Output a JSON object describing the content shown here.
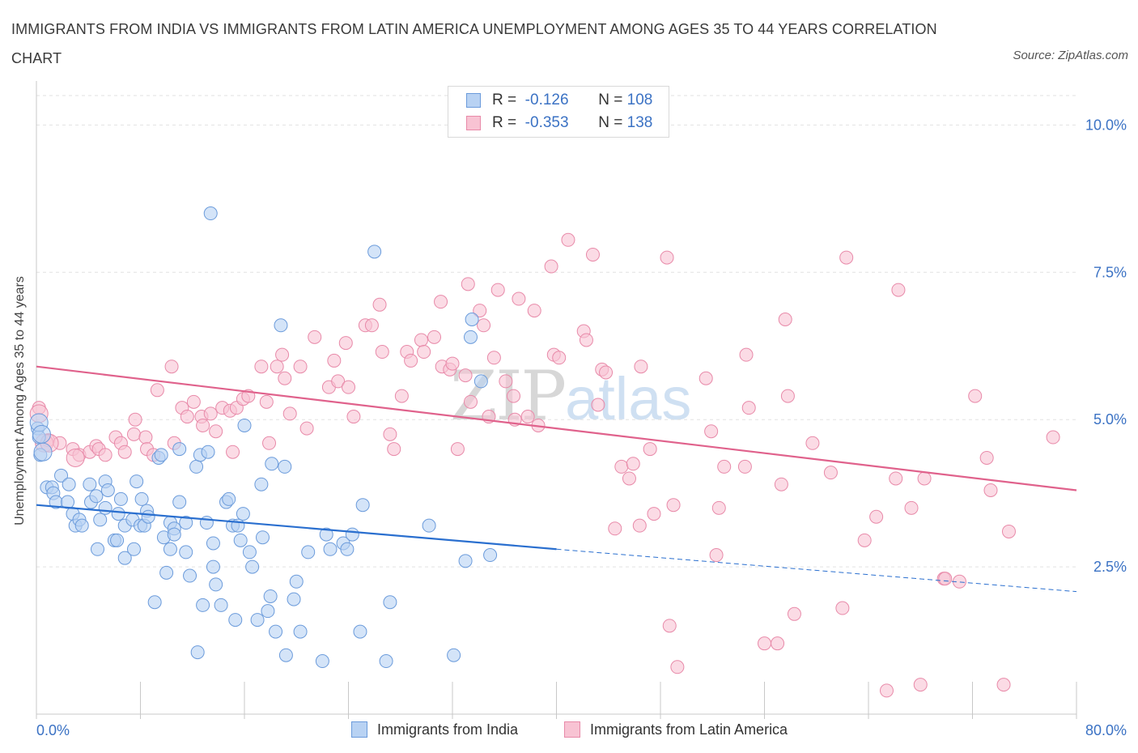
{
  "title": "IMMIGRANTS FROM INDIA VS IMMIGRANTS FROM LATIN AMERICA UNEMPLOYMENT AMONG AGES 35 TO 44 YEARS CORRELATION CHART",
  "source": "Source: ZipAtlas.com",
  "watermark": {
    "zip": "ZIP",
    "atlas": "atlas"
  },
  "legend": {
    "india": {
      "r_label": "R =",
      "r_value": "-0.126",
      "n_label": "N =",
      "n_value": "108"
    },
    "latin": {
      "r_label": "R =",
      "r_value": "-0.353",
      "n_label": "N =",
      "n_value": "138"
    }
  },
  "bottom_legend": {
    "india": "Immigrants from India",
    "latin": "Immigrants from Latin America"
  },
  "colors": {
    "india_fill": "#b8d2f3",
    "india_stroke": "#6b9bdb",
    "india_line": "#2a6fcf",
    "latin_fill": "#f8c3d3",
    "latin_stroke": "#e88aa9",
    "latin_line": "#e0628c",
    "axis_label": "#3b72c4",
    "grid": "#e2e2e2"
  },
  "chart_data": {
    "type": "scatter",
    "title": "IMMIGRANTS FROM INDIA VS IMMIGRANTS FROM LATIN AMERICA UNEMPLOYMENT AMONG AGES 35 TO 44 YEARS CORRELATION CHART",
    "ylabel": "Unemployment Among Ages 35 to 44 years",
    "xlabel": "",
    "xlim": [
      0,
      80
    ],
    "ylim": [
      0,
      10.5
    ],
    "x_tick_labels": [
      "0.0%",
      "80.0%"
    ],
    "y_ticks": [
      2.5,
      5.0,
      7.5,
      10.0
    ],
    "y_tick_labels": [
      "2.5%",
      "5.0%",
      "7.5%",
      "10.0%"
    ],
    "grid": "horizontal dashed",
    "series": [
      {
        "name": "Immigrants from India",
        "trend": {
          "x": [
            0,
            40
          ],
          "y": [
            3.55,
            2.8
          ],
          "dashed_to": [
            80,
            2.08
          ]
        },
        "points": [
          [
            0.1,
            4.85
          ],
          [
            0.2,
            4.7
          ],
          [
            0.3,
            4.4
          ],
          [
            0.8,
            3.85
          ],
          [
            1.2,
            3.85
          ],
          [
            1.3,
            3.75
          ],
          [
            1.5,
            3.6
          ],
          [
            1.9,
            4.05
          ],
          [
            2.4,
            3.6
          ],
          [
            2.5,
            3.9
          ],
          [
            2.8,
            3.4
          ],
          [
            3.0,
            3.2
          ],
          [
            3.3,
            3.3
          ],
          [
            3.5,
            3.2
          ],
          [
            4.1,
            3.9
          ],
          [
            4.2,
            3.6
          ],
          [
            4.6,
            3.7
          ],
          [
            4.7,
            2.8
          ],
          [
            4.9,
            3.3
          ],
          [
            5.3,
            3.5
          ],
          [
            5.3,
            3.95
          ],
          [
            5.5,
            3.8
          ],
          [
            6.0,
            2.95
          ],
          [
            6.2,
            2.95
          ],
          [
            6.3,
            3.4
          ],
          [
            6.5,
            3.65
          ],
          [
            6.8,
            3.2
          ],
          [
            6.8,
            2.65
          ],
          [
            7.4,
            3.3
          ],
          [
            7.5,
            2.8
          ],
          [
            7.7,
            3.95
          ],
          [
            8.0,
            3.2
          ],
          [
            8.1,
            3.65
          ],
          [
            8.3,
            3.2
          ],
          [
            8.5,
            3.45
          ],
          [
            8.6,
            3.35
          ],
          [
            9.1,
            1.9
          ],
          [
            9.4,
            4.35
          ],
          [
            9.6,
            4.4
          ],
          [
            9.8,
            3.0
          ],
          [
            10.0,
            2.4
          ],
          [
            10.3,
            2.8
          ],
          [
            10.3,
            3.25
          ],
          [
            10.6,
            3.15
          ],
          [
            10.6,
            3.05
          ],
          [
            11.0,
            4.5
          ],
          [
            11.0,
            3.6
          ],
          [
            11.5,
            3.25
          ],
          [
            11.5,
            2.75
          ],
          [
            11.8,
            2.35
          ],
          [
            12.3,
            4.2
          ],
          [
            12.4,
            1.05
          ],
          [
            12.6,
            4.4
          ],
          [
            12.8,
            1.85
          ],
          [
            13.1,
            3.25
          ],
          [
            13.2,
            4.45
          ],
          [
            13.4,
            8.5
          ],
          [
            13.6,
            2.9
          ],
          [
            13.6,
            2.5
          ],
          [
            13.8,
            2.2
          ],
          [
            14.2,
            1.85
          ],
          [
            14.6,
            3.6
          ],
          [
            14.8,
            3.65
          ],
          [
            15.1,
            3.2
          ],
          [
            15.3,
            1.6
          ],
          [
            15.5,
            3.2
          ],
          [
            15.7,
            2.95
          ],
          [
            15.9,
            3.4
          ],
          [
            16.0,
            4.9
          ],
          [
            16.4,
            2.75
          ],
          [
            16.6,
            2.5
          ],
          [
            17.0,
            1.6
          ],
          [
            17.3,
            3.9
          ],
          [
            17.4,
            3.0
          ],
          [
            17.8,
            1.75
          ],
          [
            18.0,
            2.0
          ],
          [
            18.1,
            4.25
          ],
          [
            18.4,
            1.4
          ],
          [
            18.8,
            6.6
          ],
          [
            19.1,
            4.2
          ],
          [
            19.2,
            1.0
          ],
          [
            19.8,
            1.95
          ],
          [
            20.0,
            2.25
          ],
          [
            20.3,
            1.4
          ],
          [
            20.9,
            2.75
          ],
          [
            22.0,
            0.9
          ],
          [
            22.3,
            3.05
          ],
          [
            22.6,
            2.8
          ],
          [
            23.6,
            2.9
          ],
          [
            23.9,
            2.8
          ],
          [
            24.3,
            3.05
          ],
          [
            24.9,
            1.4
          ],
          [
            25.1,
            3.55
          ],
          [
            26.9,
            0.9
          ],
          [
            27.2,
            1.9
          ],
          [
            30.2,
            3.2
          ],
          [
            32.1,
            1.0
          ],
          [
            33.0,
            2.6
          ],
          [
            33.4,
            6.4
          ],
          [
            33.5,
            6.7
          ],
          [
            34.2,
            5.65
          ],
          [
            34.9,
            2.7
          ],
          [
            26.0,
            7.85
          ]
        ],
        "large_points": [
          [
            0.2,
            4.95
          ],
          [
            0.4,
            4.75
          ],
          [
            0.5,
            4.45
          ]
        ]
      },
      {
        "name": "Immigrants from Latin America",
        "trend": {
          "x": [
            0,
            80
          ],
          "y": [
            5.9,
            3.8
          ]
        },
        "points": [
          [
            0.2,
            5.2
          ],
          [
            0.9,
            4.65
          ],
          [
            1.8,
            4.6
          ],
          [
            2.8,
            4.5
          ],
          [
            3.3,
            4.4
          ],
          [
            4.1,
            4.45
          ],
          [
            4.6,
            4.55
          ],
          [
            4.8,
            4.5
          ],
          [
            5.3,
            4.4
          ],
          [
            6.1,
            4.7
          ],
          [
            6.5,
            4.6
          ],
          [
            6.8,
            4.45
          ],
          [
            7.5,
            4.75
          ],
          [
            7.6,
            5.0
          ],
          [
            8.4,
            4.7
          ],
          [
            8.5,
            4.5
          ],
          [
            9.0,
            4.4
          ],
          [
            9.3,
            5.5
          ],
          [
            10.4,
            5.9
          ],
          [
            10.6,
            4.6
          ],
          [
            11.2,
            5.2
          ],
          [
            11.6,
            5.05
          ],
          [
            12.1,
            5.3
          ],
          [
            12.7,
            5.05
          ],
          [
            12.8,
            4.9
          ],
          [
            13.4,
            5.1
          ],
          [
            13.8,
            4.8
          ],
          [
            14.3,
            5.2
          ],
          [
            14.9,
            5.15
          ],
          [
            15.1,
            4.45
          ],
          [
            15.4,
            5.2
          ],
          [
            15.9,
            5.35
          ],
          [
            16.3,
            5.4
          ],
          [
            17.3,
            5.9
          ],
          [
            17.7,
            5.3
          ],
          [
            17.9,
            4.6
          ],
          [
            18.5,
            5.9
          ],
          [
            18.9,
            6.1
          ],
          [
            19.1,
            5.7
          ],
          [
            19.5,
            5.1
          ],
          [
            20.3,
            5.9
          ],
          [
            20.8,
            4.85
          ],
          [
            21.4,
            6.4
          ],
          [
            22.5,
            5.55
          ],
          [
            22.9,
            6.0
          ],
          [
            23.2,
            5.65
          ],
          [
            23.8,
            6.3
          ],
          [
            24.0,
            5.55
          ],
          [
            24.4,
            5.05
          ],
          [
            25.3,
            6.6
          ],
          [
            25.8,
            6.6
          ],
          [
            26.4,
            6.95
          ],
          [
            26.6,
            6.15
          ],
          [
            27.2,
            4.75
          ],
          [
            27.5,
            4.5
          ],
          [
            28.1,
            5.4
          ],
          [
            28.5,
            6.15
          ],
          [
            28.8,
            6.0
          ],
          [
            29.6,
            6.35
          ],
          [
            29.8,
            6.15
          ],
          [
            30.6,
            6.4
          ],
          [
            31.1,
            7.0
          ],
          [
            31.2,
            5.9
          ],
          [
            31.8,
            5.85
          ],
          [
            32.0,
            5.95
          ],
          [
            32.4,
            4.5
          ],
          [
            33.0,
            5.75
          ],
          [
            33.2,
            7.3
          ],
          [
            33.4,
            5.3
          ],
          [
            34.1,
            6.85
          ],
          [
            34.4,
            6.6
          ],
          [
            34.8,
            5.05
          ],
          [
            35.2,
            6.05
          ],
          [
            35.5,
            7.2
          ],
          [
            36.1,
            5.65
          ],
          [
            36.7,
            5.4
          ],
          [
            36.8,
            5.0
          ],
          [
            37.1,
            7.05
          ],
          [
            37.8,
            5.05
          ],
          [
            38.3,
            6.85
          ],
          [
            38.6,
            4.9
          ],
          [
            39.6,
            7.6
          ],
          [
            39.8,
            6.1
          ],
          [
            40.2,
            6.05
          ],
          [
            40.9,
            8.05
          ],
          [
            42.1,
            6.5
          ],
          [
            42.3,
            6.35
          ],
          [
            42.8,
            7.8
          ],
          [
            43.2,
            5.25
          ],
          [
            43.5,
            5.85
          ],
          [
            43.8,
            5.8
          ],
          [
            44.5,
            3.15
          ],
          [
            45.0,
            4.2
          ],
          [
            45.6,
            4.0
          ],
          [
            45.9,
            4.25
          ],
          [
            46.4,
            3.2
          ],
          [
            46.5,
            5.9
          ],
          [
            47.2,
            4.5
          ],
          [
            47.5,
            3.4
          ],
          [
            48.7,
            1.5
          ],
          [
            48.5,
            7.75
          ],
          [
            49.0,
            3.55
          ],
          [
            49.3,
            0.8
          ],
          [
            51.5,
            5.7
          ],
          [
            51.9,
            4.8
          ],
          [
            52.3,
            2.7
          ],
          [
            52.5,
            3.5
          ],
          [
            52.9,
            4.2
          ],
          [
            54.5,
            4.2
          ],
          [
            54.6,
            6.1
          ],
          [
            54.8,
            5.2
          ],
          [
            56.0,
            1.2
          ],
          [
            57.0,
            1.2
          ],
          [
            57.3,
            3.9
          ],
          [
            57.6,
            6.7
          ],
          [
            57.8,
            5.4
          ],
          [
            58.3,
            1.7
          ],
          [
            59.7,
            4.6
          ],
          [
            61.1,
            4.1
          ],
          [
            62.0,
            1.8
          ],
          [
            62.3,
            7.75
          ],
          [
            63.7,
            2.95
          ],
          [
            64.6,
            3.35
          ],
          [
            65.4,
            0.4
          ],
          [
            66.1,
            4.0
          ],
          [
            66.3,
            7.2
          ],
          [
            67.3,
            3.5
          ],
          [
            68.0,
            0.5
          ],
          [
            68.3,
            4.0
          ],
          [
            69.8,
            2.3
          ],
          [
            69.9,
            2.3
          ],
          [
            71.0,
            2.25
          ],
          [
            72.2,
            5.4
          ],
          [
            73.1,
            4.35
          ],
          [
            73.4,
            3.8
          ],
          [
            74.4,
            0.5
          ],
          [
            74.8,
            3.1
          ],
          [
            78.2,
            4.7
          ]
        ],
        "large_points": [
          [
            0.2,
            5.1
          ],
          [
            0.6,
            4.6
          ],
          [
            1.0,
            4.6
          ],
          [
            3.0,
            4.35
          ]
        ]
      }
    ]
  }
}
